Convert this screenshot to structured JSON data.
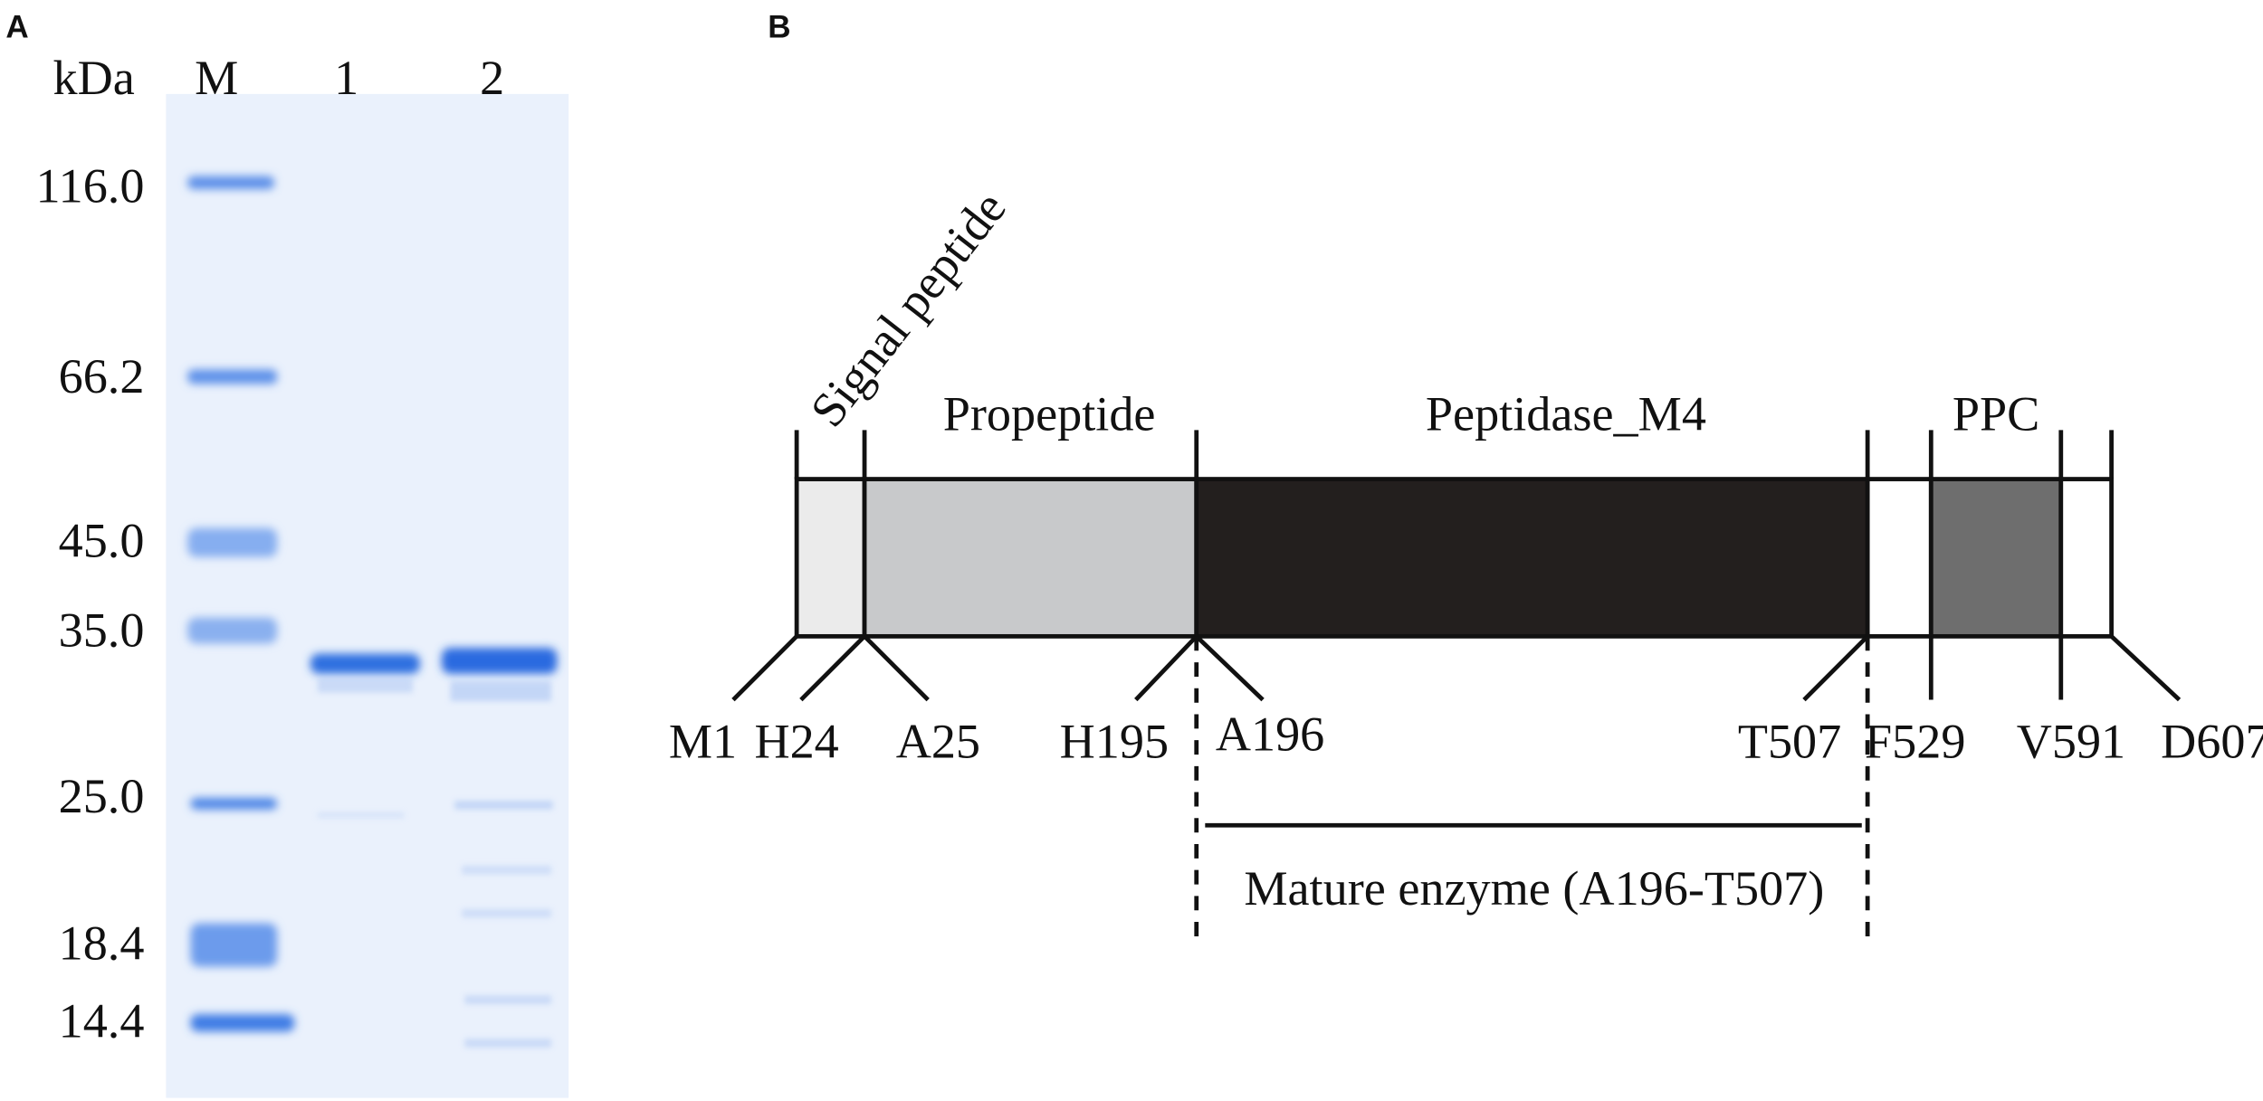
{
  "panel_a": {
    "label": "A",
    "unit": "kDa",
    "lanes": [
      "M",
      "1",
      "2"
    ],
    "markers": [
      "116.0",
      "66.2",
      "45.0",
      "35.0",
      "25.0",
      "18.4",
      "14.4"
    ]
  },
  "panel_b": {
    "label": "B",
    "signal_peptide": "Signal peptide",
    "domains": [
      "Propeptide",
      "Peptidase_M4",
      "PPC"
    ],
    "residues": [
      "M1",
      "H24",
      "A25",
      "H195",
      "A196",
      "T507",
      "F529",
      "V591",
      "D607"
    ],
    "mature_label": "Mature enzyme (A196-T507)"
  }
}
